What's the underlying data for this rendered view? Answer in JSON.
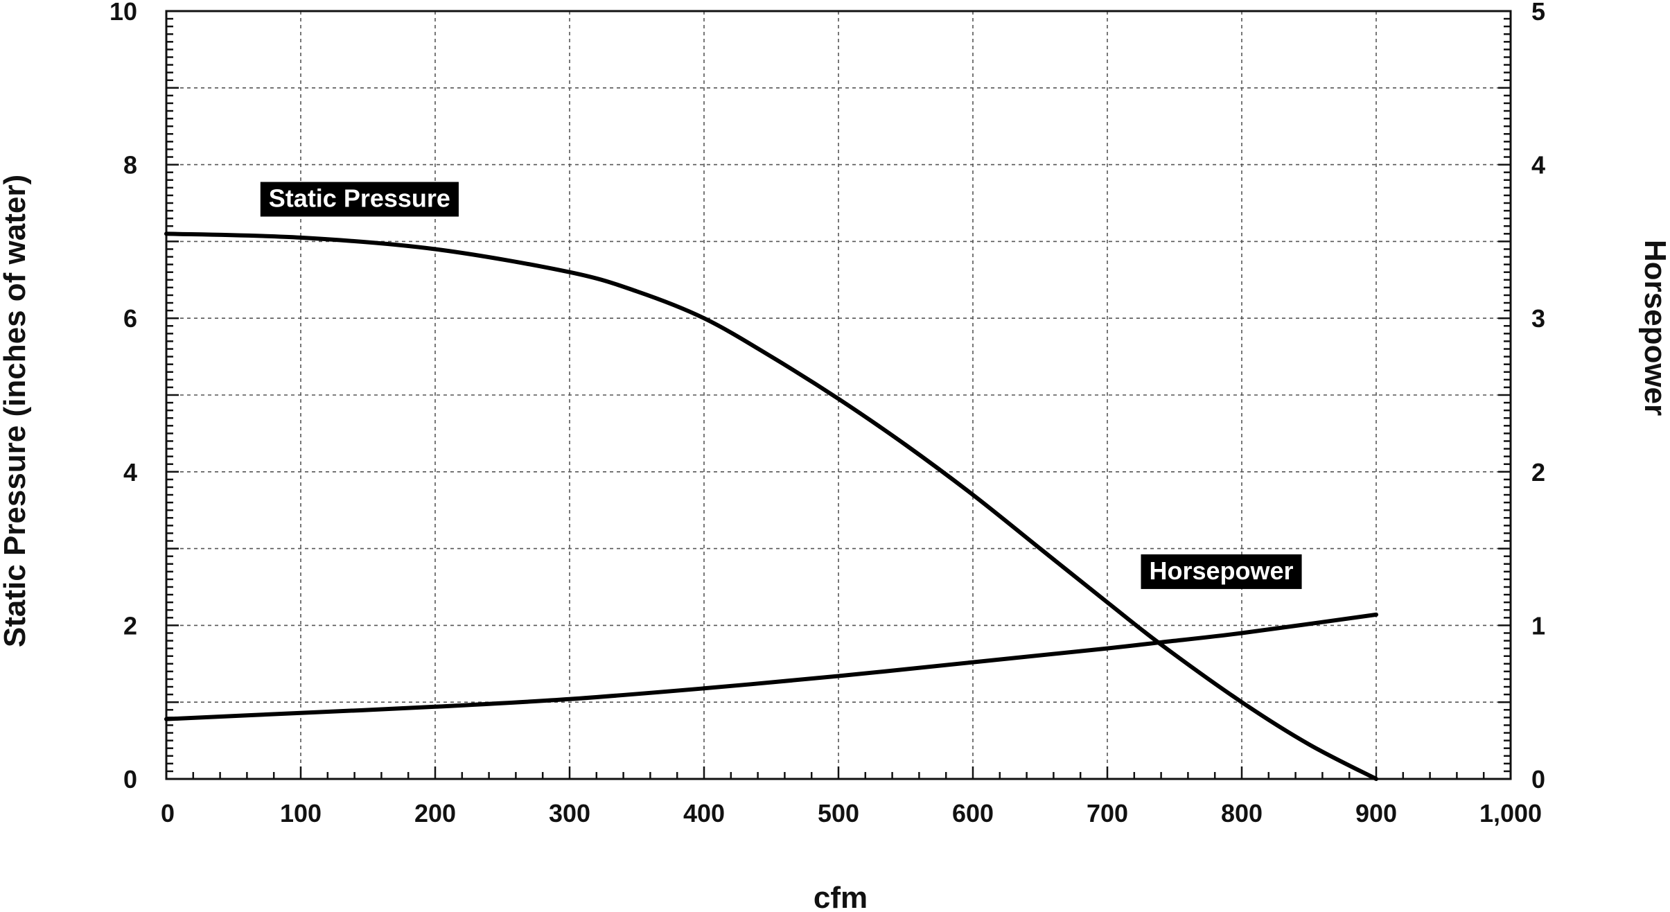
{
  "chart_data": {
    "type": "line",
    "xlabel": "cfm",
    "ylabel": "Static Pressure (inches of water)",
    "y2label": "Horsepower",
    "xlim": [
      0,
      1000
    ],
    "ylim": [
      0,
      10
    ],
    "y2lim": [
      0,
      5
    ],
    "grid": true,
    "x_ticks": [
      "0",
      "100",
      "200",
      "300",
      "400",
      "500",
      "600",
      "700",
      "800",
      "900",
      "1,000"
    ],
    "y_ticks": [
      "0",
      "2",
      "4",
      "6",
      "8",
      "10"
    ],
    "y2_ticks": [
      "0",
      "1",
      "2",
      "3",
      "4",
      "5"
    ],
    "series": [
      {
        "name": "Static Pressure",
        "axis": "left",
        "x": [
          0,
          100,
          200,
          300,
          350,
          400,
          450,
          500,
          550,
          600,
          650,
          700,
          740,
          800,
          850,
          900
        ],
        "y": [
          7.1,
          7.05,
          6.9,
          6.6,
          6.35,
          6.0,
          5.5,
          4.95,
          4.35,
          3.7,
          3.0,
          2.3,
          1.75,
          1.0,
          0.45,
          0.0
        ]
      },
      {
        "name": "Horsepower",
        "axis": "right",
        "x": [
          0,
          100,
          200,
          300,
          400,
          500,
          600,
          700,
          740,
          800,
          900
        ],
        "y": [
          0.39,
          0.43,
          0.47,
          0.52,
          0.59,
          0.67,
          0.76,
          0.85,
          0.89,
          0.95,
          1.07
        ]
      }
    ]
  }
}
